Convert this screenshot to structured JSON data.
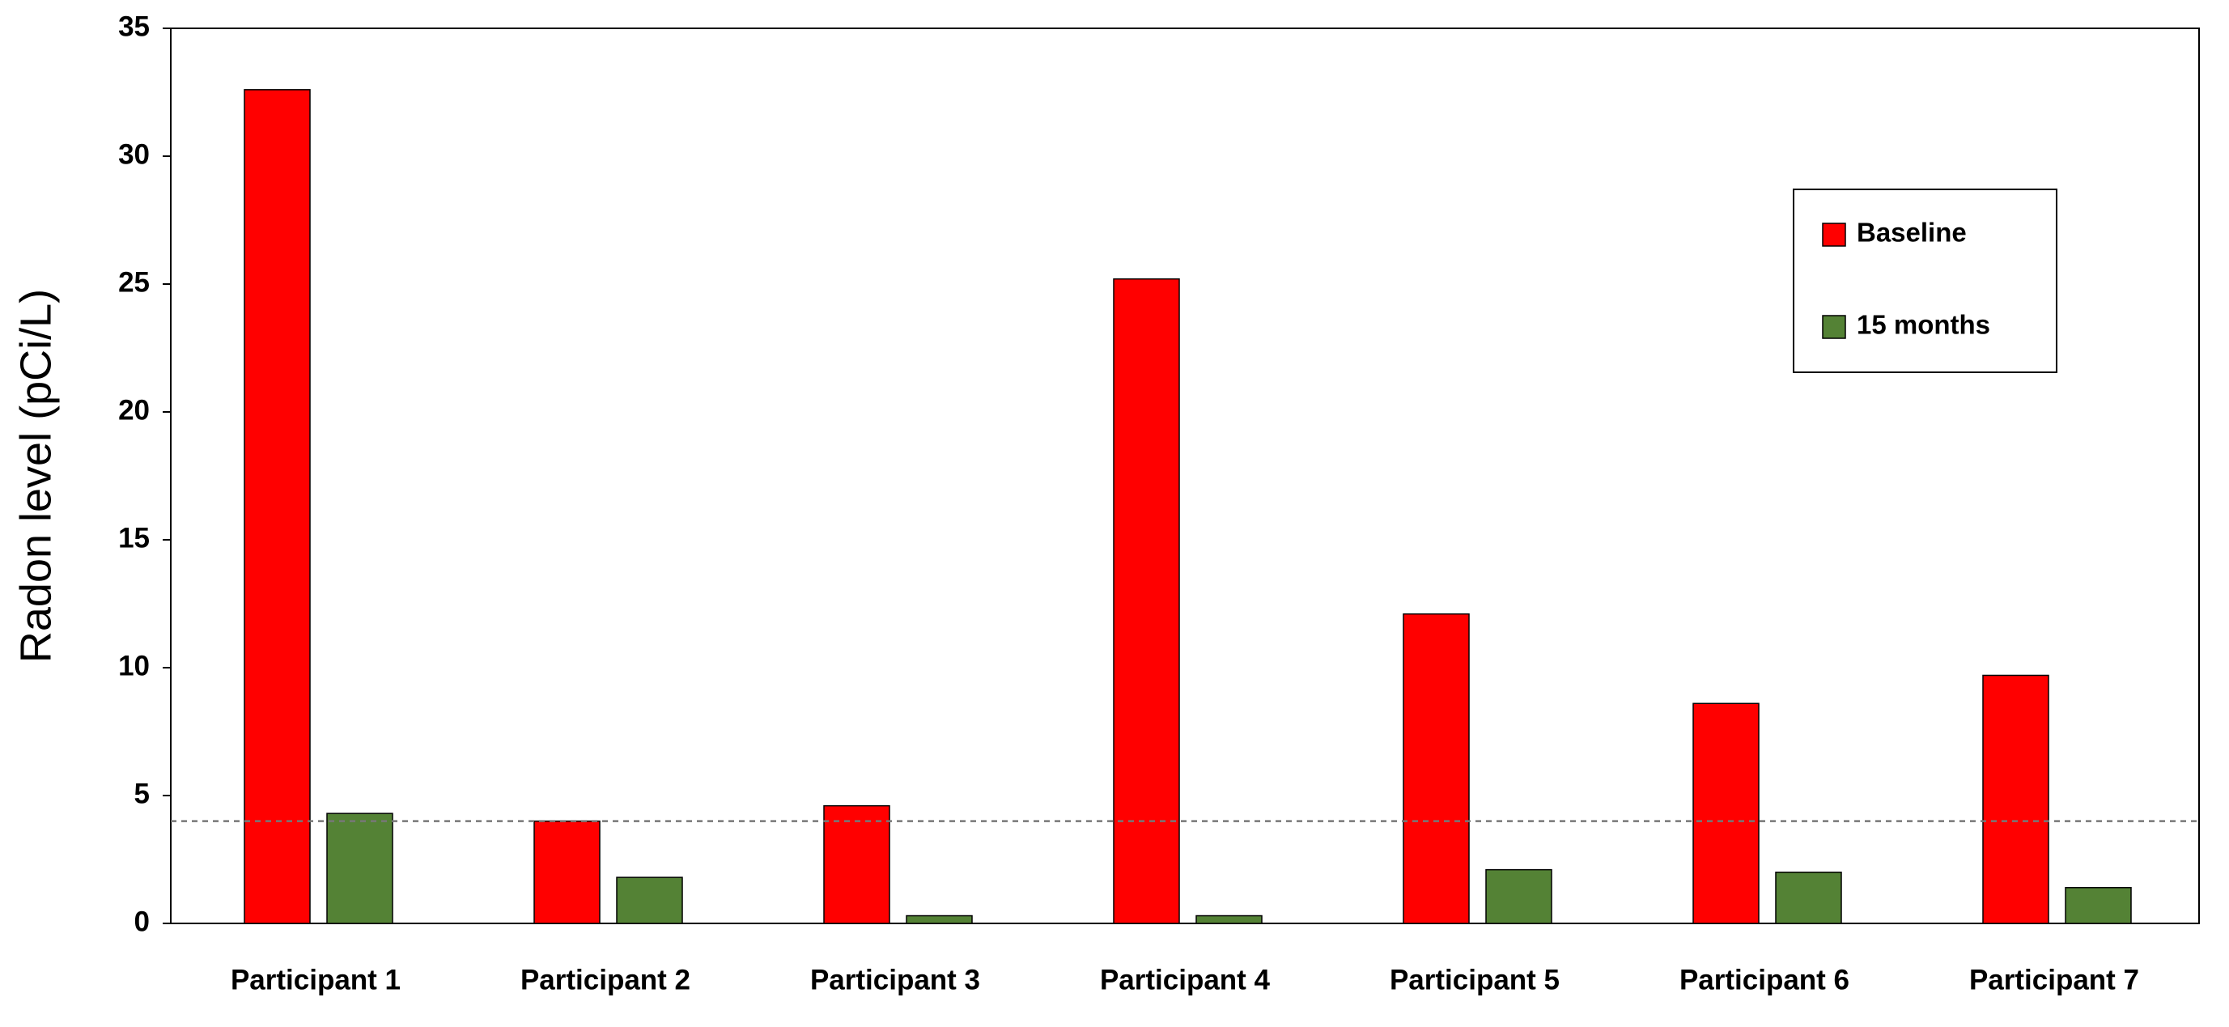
{
  "chart_data": {
    "type": "bar",
    "y_label": "Radon level (pCi/L)",
    "categories": [
      "Participant 1",
      "Participant 2",
      "Participant 3",
      "Participant 4",
      "Participant 5",
      "Participant 6",
      "Participant 7"
    ],
    "series": [
      {
        "name": "Baseline",
        "color": "#ff0000",
        "values": [
          32.6,
          4.0,
          4.6,
          25.2,
          12.1,
          8.6,
          9.7
        ]
      },
      {
        "name": "15 months",
        "color": "#548235",
        "values": [
          4.3,
          1.8,
          0.3,
          0.3,
          2.1,
          2.0,
          1.4
        ]
      }
    ],
    "reference_line": 4,
    "ylim": [
      0,
      35
    ],
    "yticks": [
      0,
      5,
      10,
      15,
      20,
      25,
      30,
      35
    ],
    "legend": "upper right"
  }
}
